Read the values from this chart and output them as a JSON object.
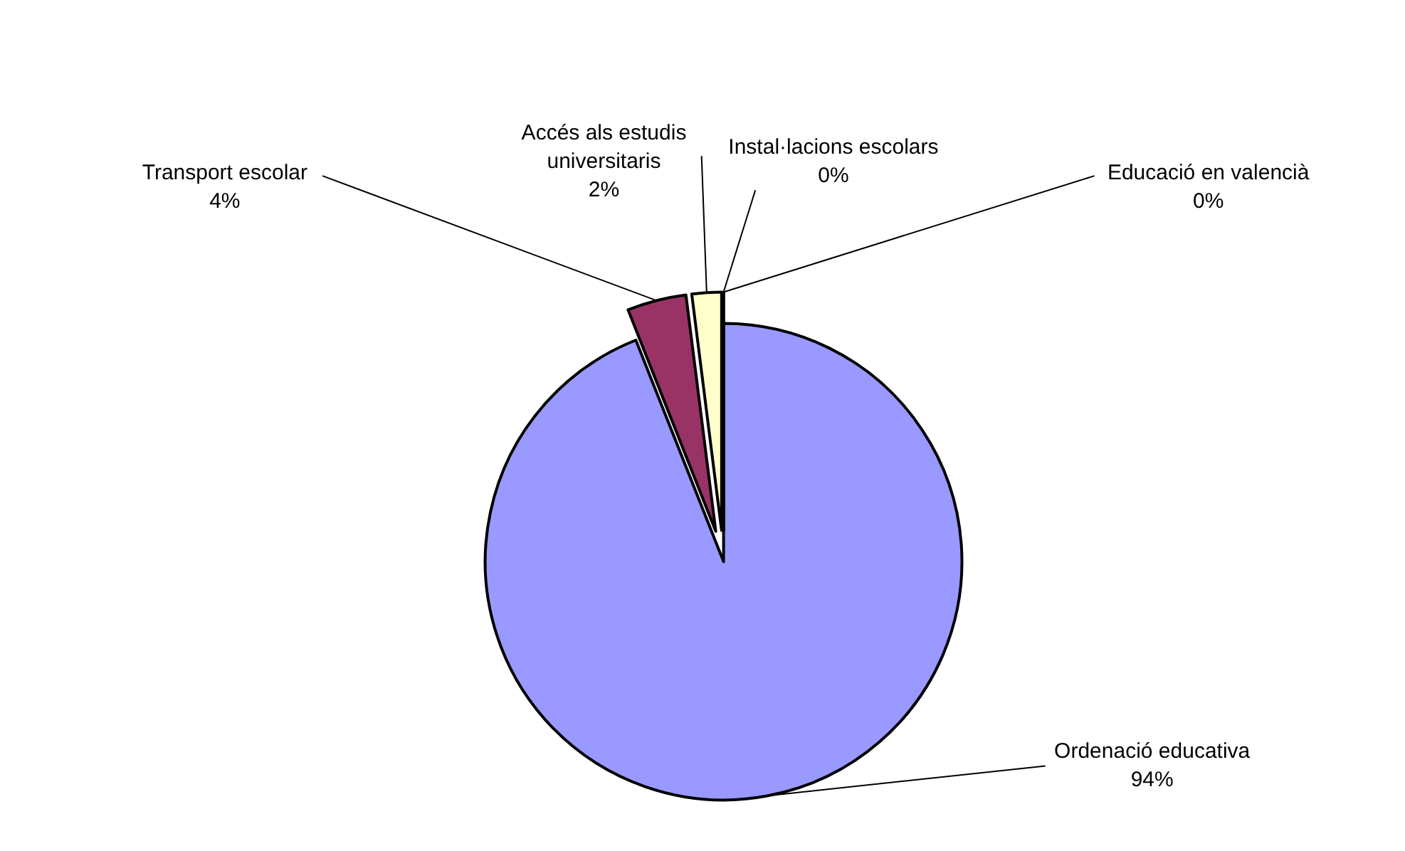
{
  "chart_data": {
    "type": "pie",
    "categories": [
      "Ordenació educativa",
      "Transport escolar",
      "Accés als estudis universitaris",
      "Instal·lacions escolars",
      "Educació en valencià"
    ],
    "values": [
      94,
      4,
      2,
      0,
      0
    ],
    "value_labels": [
      "94%",
      "4%",
      "2%",
      "0%",
      "0%"
    ],
    "colors": [
      "#9999ff",
      "#993366",
      "#ffffcc",
      "#ccffff",
      "#660066"
    ],
    "legend": false
  }
}
